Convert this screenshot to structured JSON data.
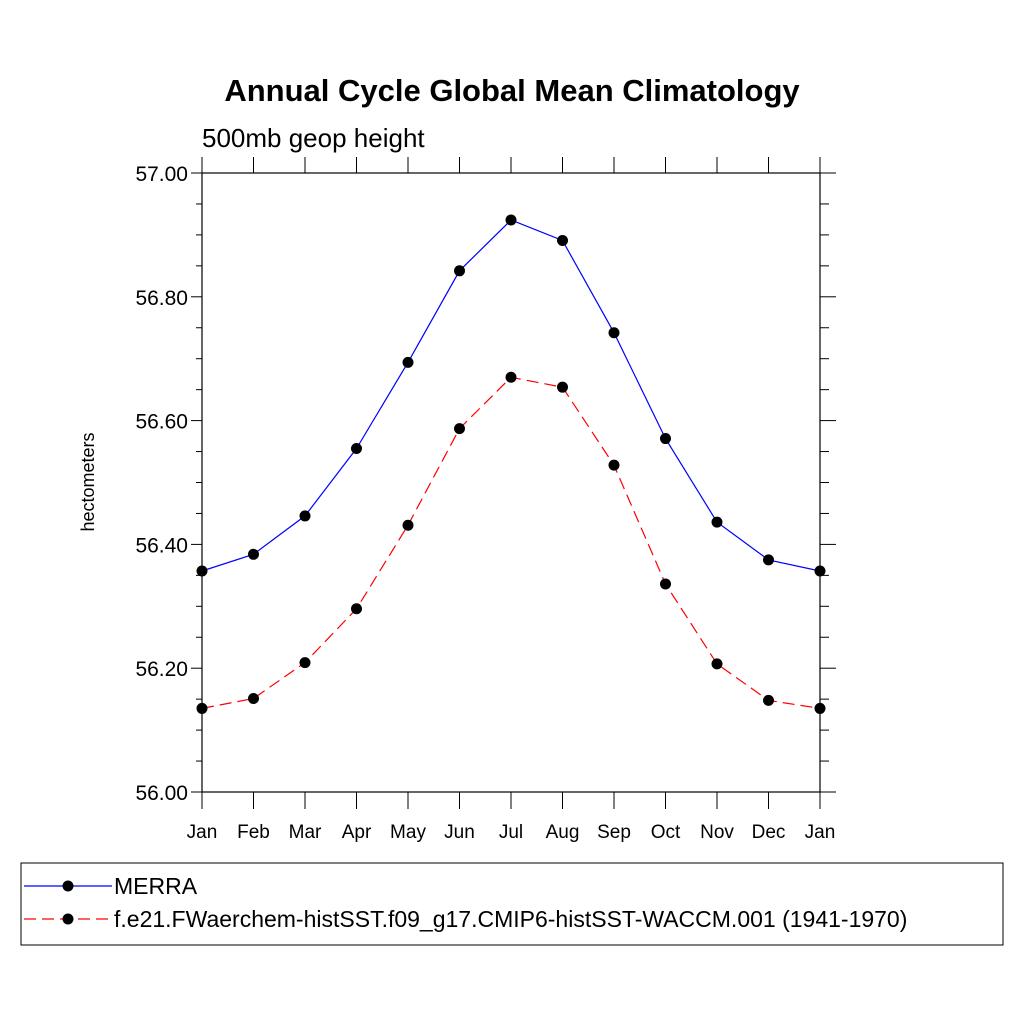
{
  "chart_data": {
    "type": "line",
    "title": "Annual Cycle Global Mean Climatology",
    "subtitle": "500mb geop height",
    "xlabel": "",
    "ylabel": "hectometers",
    "categories": [
      "Jan",
      "Feb",
      "Mar",
      "Apr",
      "May",
      "Jun",
      "Jul",
      "Aug",
      "Sep",
      "Oct",
      "Nov",
      "Dec",
      "Jan"
    ],
    "ylim": [
      56.0,
      57.0
    ],
    "yticks": [
      "56.00",
      "56.20",
      "56.40",
      "56.60",
      "56.80",
      "57.00"
    ],
    "grid": false,
    "legend_position": "bottom",
    "series": [
      {
        "name": "MERRA",
        "color": "#0000ff",
        "dash": "solid",
        "marker": "filled-circle",
        "values": [
          56.357,
          56.384,
          56.446,
          56.555,
          56.694,
          56.842,
          56.924,
          56.891,
          56.742,
          56.571,
          56.436,
          56.375,
          56.357
        ]
      },
      {
        "name": "f.e21.FWaerchem-histSST.f09_g17.CMIP6-histSST-WACCM.001 (1941-1970)",
        "color": "#ff0000",
        "dash": "dashed",
        "marker": "filled-circle",
        "values": [
          56.135,
          56.151,
          56.209,
          56.296,
          56.431,
          56.587,
          56.67,
          56.654,
          56.528,
          56.336,
          56.207,
          56.148,
          56.135
        ]
      }
    ]
  }
}
